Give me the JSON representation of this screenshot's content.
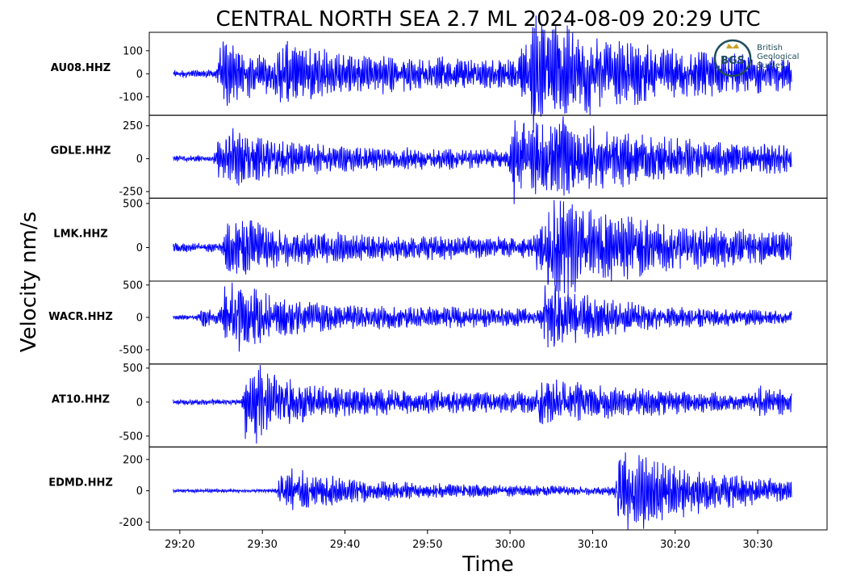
{
  "chart_data": {
    "type": "line",
    "title": "CENTRAL NORTH SEA 2.7 ML   2024-08-09 20:29 UTC",
    "xlabel": "Time",
    "ylabel": "Velocity nm/s",
    "x_ticks": [
      "29:20",
      "29:30",
      "29:40",
      "29:50",
      "30:00",
      "30:10",
      "30:20",
      "30:30"
    ],
    "x_tick_seconds": [
      1160,
      1170,
      1180,
      1190,
      1200,
      1210,
      1220,
      1230
    ],
    "xlim_seconds": [
      1156.3,
      1238.4
    ],
    "trace_range_seconds": [
      1159.2,
      1234.1
    ],
    "line_color": "#0000ff",
    "grid": false,
    "logo": {
      "lines": [
        "British",
        "Geological",
        "Survey"
      ],
      "mark": "BGS"
    },
    "series": [
      {
        "name": "AU08.HHZ",
        "ylim": [
          -180,
          180
        ],
        "yticks": [
          100,
          0,
          -100
        ],
        "ytick_labels": [
          "100",
          "0",
          "-100"
        ],
        "noise": 14,
        "events": [
          {
            "t": 1164.8,
            "amp": 125,
            "decay": 9
          },
          {
            "t": 1172.0,
            "amp": 55,
            "decay": 80
          },
          {
            "t": 1202.5,
            "amp": 140,
            "decay": 9
          },
          {
            "t": 1201.0,
            "amp": 55,
            "decay": 35
          }
        ]
      },
      {
        "name": "GDLE.HHZ",
        "ylim": [
          -300,
          330
        ],
        "yticks": [
          250,
          0,
          -250
        ],
        "ytick_labels": [
          "250",
          "0",
          "-250"
        ],
        "noise": 20,
        "events": [
          {
            "t": 1164.5,
            "amp": 150,
            "decay": 6
          },
          {
            "t": 1166.0,
            "amp": 75,
            "decay": 60
          },
          {
            "t": 1200.2,
            "amp": 260,
            "decay": 9
          },
          {
            "t": 1205.0,
            "amp": 90,
            "decay": 40
          }
        ]
      },
      {
        "name": "LMK.HHZ",
        "ylim": [
          -380,
          560
        ],
        "yticks": [
          500,
          0
        ],
        "ytick_labels": [
          "500",
          "0"
        ],
        "noise": 45,
        "events": [
          {
            "t": 1165.5,
            "amp": 260,
            "decay": 5
          },
          {
            "t": 1167.0,
            "amp": 110,
            "decay": 60
          },
          {
            "t": 1204.5,
            "amp": 330,
            "decay": 10
          },
          {
            "t": 1203.0,
            "amp": 120,
            "decay": 40
          }
        ]
      },
      {
        "name": "WACR.HHZ",
        "ylim": [
          -720,
          560
        ],
        "yticks": [
          500,
          0,
          -500
        ],
        "ytick_labels": [
          "500",
          "0",
          "-500"
        ],
        "noise": 30,
        "events": [
          {
            "t": 1165.4,
            "amp": 420,
            "decay": 5
          },
          {
            "t": 1166.5,
            "amp": 170,
            "decay": 60
          },
          {
            "t": 1204.0,
            "amp": 380,
            "decay": 8
          },
          {
            "t": 1162.5,
            "amp": 110,
            "decay": 4
          }
        ]
      },
      {
        "name": "AT10.HHZ",
        "ylim": [
          -660,
          560
        ],
        "yticks": [
          500,
          0,
          -500
        ],
        "ytick_labels": [
          "500",
          "0",
          "-500"
        ],
        "noise": 35,
        "events": [
          {
            "t": 1167.9,
            "amp": 480,
            "decay": 4
          },
          {
            "t": 1169.0,
            "amp": 160,
            "decay": 70
          },
          {
            "t": 1203.5,
            "amp": 220,
            "decay": 10
          },
          {
            "t": 1230.0,
            "amp": 90,
            "decay": 8
          }
        ]
      },
      {
        "name": "EDMD.HHZ",
        "ylim": [
          -250,
          280
        ],
        "yticks": [
          200,
          0,
          -200
        ],
        "ytick_labels": [
          "200",
          "0",
          "-200"
        ],
        "noise": 10,
        "events": [
          {
            "t": 1171.9,
            "amp": 110,
            "decay": 8
          },
          {
            "t": 1173.0,
            "amp": 30,
            "decay": 60
          },
          {
            "t": 1213.0,
            "amp": 230,
            "decay": 8
          },
          {
            "t": 1216.0,
            "amp": 45,
            "decay": 30
          }
        ]
      }
    ]
  }
}
